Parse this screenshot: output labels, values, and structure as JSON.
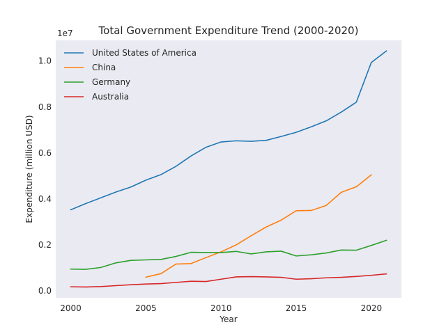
{
  "chart_data": {
    "type": "line",
    "title": "Total Government Expenditure Trend (2000-2020)",
    "xlabel": "Year",
    "ylabel": "Expenditure (million USD)",
    "y_offset_label": "1e7",
    "xlim": [
      1999.0,
      2022.0
    ],
    "ylim": [
      -300000,
      10900000
    ],
    "x_ticks": [
      2000,
      2005,
      2010,
      2015,
      2020
    ],
    "y_ticks": [
      0,
      2000000,
      4000000,
      6000000,
      8000000,
      10000000
    ],
    "y_tick_labels": [
      "0.0",
      "0.2",
      "0.4",
      "0.6",
      "0.8",
      "1.0"
    ],
    "grid": false,
    "legend_position": "top-left",
    "series": [
      {
        "name": "United States of America",
        "color": "#1f77b4",
        "x": [
          2000,
          2001,
          2002,
          2003,
          2004,
          2005,
          2006,
          2007,
          2008,
          2009,
          2010,
          2011,
          2012,
          2013,
          2014,
          2015,
          2016,
          2017,
          2018,
          2019,
          2020,
          2021
        ],
        "values": [
          3530000,
          3800000,
          4050000,
          4300000,
          4520000,
          4820000,
          5060000,
          5420000,
          5870000,
          6250000,
          6480000,
          6530000,
          6510000,
          6550000,
          6720000,
          6900000,
          7140000,
          7400000,
          7780000,
          8210000,
          9940000,
          10440000
        ]
      },
      {
        "name": "China",
        "color": "#ff7f0e",
        "x": [
          2005,
          2006,
          2007,
          2008,
          2009,
          2010,
          2011,
          2012,
          2013,
          2014,
          2015,
          2016,
          2017,
          2018,
          2019,
          2020
        ],
        "values": [
          600000,
          750000,
          1170000,
          1190000,
          1450000,
          1700000,
          2000000,
          2400000,
          2780000,
          3080000,
          3490000,
          3500000,
          3720000,
          4290000,
          4530000,
          5050000
        ]
      },
      {
        "name": "Germany",
        "color": "#2ca02c",
        "x": [
          2000,
          2001,
          2002,
          2003,
          2004,
          2005,
          2006,
          2007,
          2008,
          2009,
          2010,
          2011,
          2012,
          2013,
          2014,
          2015,
          2016,
          2017,
          2018,
          2019,
          2020,
          2021
        ],
        "values": [
          950000,
          940000,
          1020000,
          1220000,
          1330000,
          1350000,
          1370000,
          1500000,
          1680000,
          1670000,
          1670000,
          1720000,
          1610000,
          1700000,
          1730000,
          1520000,
          1570000,
          1650000,
          1780000,
          1770000,
          1980000,
          2200000
        ]
      },
      {
        "name": "Australia",
        "color": "#d62728",
        "x": [
          2000,
          2001,
          2002,
          2003,
          2004,
          2005,
          2006,
          2007,
          2008,
          2009,
          2010,
          2011,
          2012,
          2013,
          2014,
          2015,
          2016,
          2017,
          2018,
          2019,
          2020,
          2021
        ],
        "values": [
          180000,
          170000,
          190000,
          230000,
          270000,
          300000,
          320000,
          370000,
          420000,
          410000,
          510000,
          610000,
          620000,
          610000,
          590000,
          510000,
          530000,
          570000,
          590000,
          630000,
          680000,
          740000
        ]
      }
    ]
  }
}
